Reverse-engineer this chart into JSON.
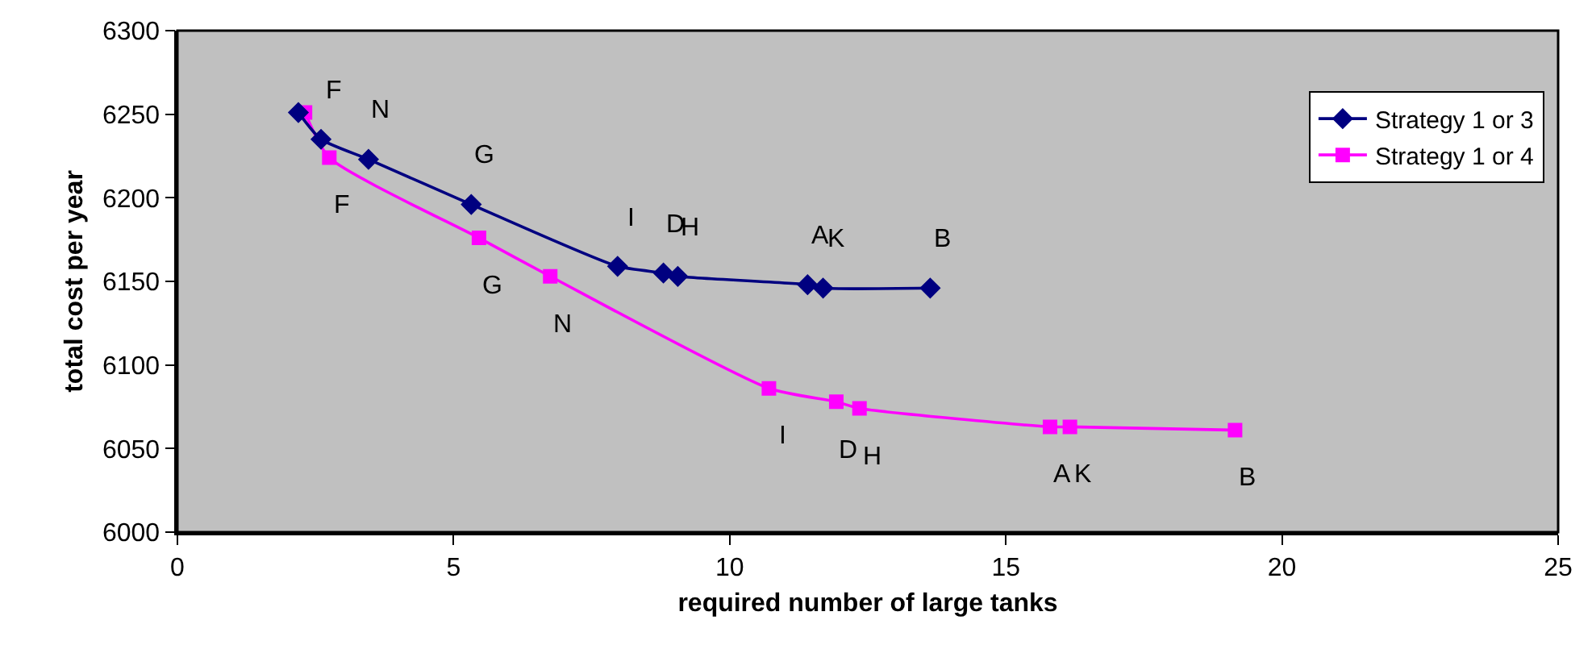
{
  "chart_data": {
    "type": "line",
    "xlabel": "required number of large tanks",
    "ylabel": "total cost per year",
    "xlim": [
      0,
      25
    ],
    "xticks": [
      0,
      5,
      10,
      15,
      20,
      25
    ],
    "ylim": [
      6000,
      6300
    ],
    "yticks": [
      6000,
      6050,
      6100,
      6150,
      6200,
      6250,
      6300
    ],
    "grid": false,
    "legend": "top right",
    "series": [
      {
        "name": "Strategy 1 or 3",
        "color": "#000080",
        "marker": "diamond",
        "x": [
          2.19,
          2.6,
          3.46,
          5.32,
          7.97,
          8.8,
          9.06,
          11.41,
          11.69,
          13.63
        ],
        "values": [
          6251,
          6235,
          6223,
          6196,
          6159,
          6155,
          6153,
          6148,
          6146,
          6146
        ]
      },
      {
        "name": "Strategy 1 or 4",
        "color": "#ff00ff",
        "marker": "square",
        "x": [
          2.31,
          2.75,
          5.46,
          6.75,
          10.71,
          11.93,
          12.35,
          15.8,
          16.16,
          19.15
        ],
        "values": [
          6251,
          6224,
          6176,
          6153,
          6086,
          6078,
          6074,
          6063,
          6063,
          6061
        ]
      }
    ],
    "annotations": [
      {
        "text": "F",
        "x": 2.6,
        "y": 6235
      },
      {
        "text": "N",
        "x": 3.46,
        "y": 6223
      },
      {
        "text": "G",
        "x": 5.32,
        "y": 6196
      },
      {
        "text": "I",
        "x": 7.97,
        "y": 6159
      },
      {
        "text": "D",
        "x": 8.8,
        "y": 6155
      },
      {
        "text": "H",
        "x": 9.06,
        "y": 6153
      },
      {
        "text": "A",
        "x": 11.41,
        "y": 6148
      },
      {
        "text": "K",
        "x": 11.69,
        "y": 6146
      },
      {
        "text": "B",
        "x": 13.63,
        "y": 6146
      },
      {
        "text": "F",
        "x": 2.75,
        "y": 6224
      },
      {
        "text": "G",
        "x": 5.46,
        "y": 6176
      },
      {
        "text": "N",
        "x": 6.75,
        "y": 6153
      },
      {
        "text": "I",
        "x": 10.71,
        "y": 6086
      },
      {
        "text": "D",
        "x": 11.93,
        "y": 6078
      },
      {
        "text": "H",
        "x": 12.35,
        "y": 6074
      },
      {
        "text": "A",
        "x": 15.8,
        "y": 6063
      },
      {
        "text": "K",
        "x": 16.16,
        "y": 6063
      },
      {
        "text": "B",
        "x": 19.15,
        "y": 6061
      }
    ]
  }
}
